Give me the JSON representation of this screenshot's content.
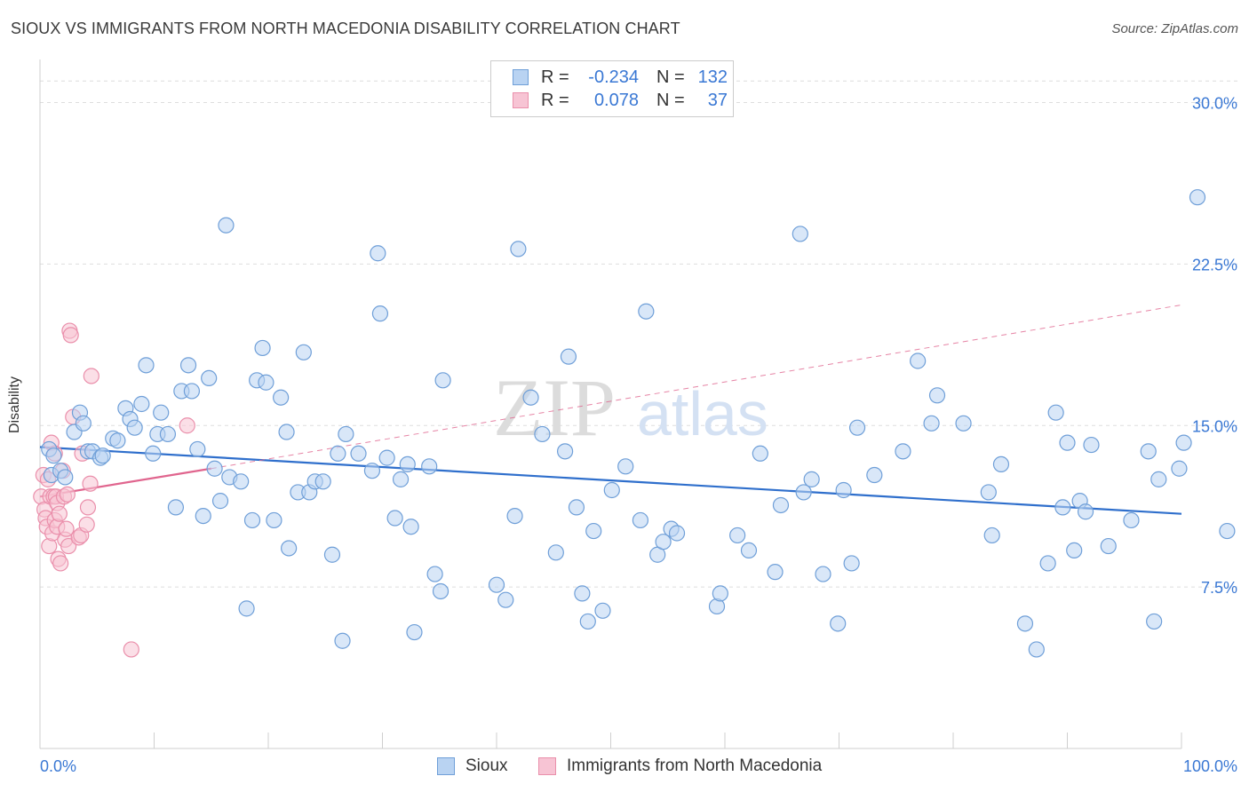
{
  "title": "SIOUX VS IMMIGRANTS FROM NORTH MACEDONIA DISABILITY CORRELATION CHART",
  "source": "Source: ZipAtlas.com",
  "watermark": {
    "zip": "ZIP",
    "atlas": "atlas"
  },
  "legend": {
    "rows": [
      {
        "r_label": "R =",
        "r_value": "-0.234",
        "n_label": "N =",
        "n_value": "132"
      },
      {
        "r_label": "R =",
        "r_value": "0.078",
        "n_label": "N =",
        "n_value": "37"
      }
    ]
  },
  "bottom_legend": {
    "series1": "Sioux",
    "series2": "Immigrants from North Macedonia"
  },
  "colors": {
    "sioux_fill": "#b9d3f2",
    "sioux_stroke": "#6f9fd8",
    "sioux_line": "#2f6fcc",
    "mac_fill": "#f7c4d4",
    "mac_stroke": "#ea8fab",
    "mac_line": "#e0658e",
    "axis_label": "#3a78d4",
    "grid": "#dedede"
  },
  "chart_data": {
    "type": "scatter",
    "title": "SIOUX VS IMMIGRANTS FROM NORTH MACEDONIA DISABILITY CORRELATION CHART",
    "xlabel": "",
    "ylabel": "Disability",
    "xlim": [
      0,
      100
    ],
    "ylim": [
      0,
      32
    ],
    "x_tick_labels": [
      "0.0%",
      "100.0%"
    ],
    "y_ticks": [
      7.5,
      15.0,
      22.5,
      30.0
    ],
    "y_tick_labels": [
      "7.5%",
      "15.0%",
      "22.5%",
      "30.0%"
    ],
    "series": [
      {
        "name": "Sioux",
        "r": -0.234,
        "n": 132,
        "trend": {
          "x": [
            0,
            100
          ],
          "y": [
            14.0,
            10.9
          ]
        },
        "points": [
          [
            0.8,
            13.9
          ],
          [
            1.0,
            12.7
          ],
          [
            1.2,
            13.6
          ],
          [
            1.8,
            12.9
          ],
          [
            2.2,
            12.6
          ],
          [
            3.0,
            14.7
          ],
          [
            3.5,
            15.6
          ],
          [
            3.8,
            15.1
          ],
          [
            4.2,
            13.8
          ],
          [
            4.6,
            13.8
          ],
          [
            5.3,
            13.5
          ],
          [
            5.5,
            13.6
          ],
          [
            6.4,
            14.4
          ],
          [
            6.8,
            14.3
          ],
          [
            7.5,
            15.8
          ],
          [
            7.9,
            15.3
          ],
          [
            8.3,
            14.9
          ],
          [
            8.9,
            16.0
          ],
          [
            9.3,
            17.8
          ],
          [
            9.9,
            13.7
          ],
          [
            10.3,
            14.6
          ],
          [
            10.6,
            15.6
          ],
          [
            11.2,
            14.6
          ],
          [
            11.9,
            11.2
          ],
          [
            12.4,
            16.6
          ],
          [
            13.0,
            17.8
          ],
          [
            13.3,
            16.6
          ],
          [
            13.8,
            13.9
          ],
          [
            14.3,
            10.8
          ],
          [
            14.8,
            17.2
          ],
          [
            15.3,
            13.0
          ],
          [
            15.8,
            11.5
          ],
          [
            16.3,
            24.3
          ],
          [
            16.6,
            12.6
          ],
          [
            17.6,
            12.4
          ],
          [
            18.1,
            6.5
          ],
          [
            18.6,
            10.6
          ],
          [
            19.0,
            17.1
          ],
          [
            19.5,
            18.6
          ],
          [
            19.8,
            17.0
          ],
          [
            20.5,
            10.6
          ],
          [
            21.1,
            16.3
          ],
          [
            21.6,
            14.7
          ],
          [
            21.8,
            9.3
          ],
          [
            22.6,
            11.9
          ],
          [
            23.1,
            18.4
          ],
          [
            23.6,
            11.9
          ],
          [
            24.1,
            12.4
          ],
          [
            24.8,
            12.4
          ],
          [
            25.6,
            9.0
          ],
          [
            26.1,
            13.7
          ],
          [
            26.5,
            5.0
          ],
          [
            26.8,
            14.6
          ],
          [
            27.9,
            13.7
          ],
          [
            29.1,
            12.9
          ],
          [
            29.6,
            23.0
          ],
          [
            29.8,
            20.2
          ],
          [
            30.4,
            13.5
          ],
          [
            31.1,
            10.7
          ],
          [
            31.6,
            12.5
          ],
          [
            32.2,
            13.2
          ],
          [
            32.5,
            10.3
          ],
          [
            32.8,
            5.4
          ],
          [
            34.1,
            13.1
          ],
          [
            34.6,
            8.1
          ],
          [
            35.1,
            7.3
          ],
          [
            35.3,
            17.1
          ],
          [
            40.0,
            7.6
          ],
          [
            40.8,
            6.9
          ],
          [
            41.6,
            10.8
          ],
          [
            41.9,
            23.2
          ],
          [
            43.0,
            16.3
          ],
          [
            44.0,
            14.6
          ],
          [
            45.2,
            9.1
          ],
          [
            46.0,
            13.8
          ],
          [
            46.3,
            18.2
          ],
          [
            47.0,
            11.2
          ],
          [
            47.5,
            7.2
          ],
          [
            48.0,
            5.9
          ],
          [
            48.5,
            10.1
          ],
          [
            49.3,
            6.4
          ],
          [
            50.1,
            12.0
          ],
          [
            51.3,
            13.1
          ],
          [
            52.6,
            10.6
          ],
          [
            53.1,
            20.3
          ],
          [
            54.1,
            9.0
          ],
          [
            54.6,
            9.6
          ],
          [
            55.3,
            10.2
          ],
          [
            55.8,
            10.0
          ],
          [
            59.3,
            6.6
          ],
          [
            59.6,
            7.2
          ],
          [
            61.1,
            9.9
          ],
          [
            62.1,
            9.2
          ],
          [
            63.1,
            13.7
          ],
          [
            64.4,
            8.2
          ],
          [
            64.9,
            11.3
          ],
          [
            66.6,
            23.9
          ],
          [
            66.9,
            11.9
          ],
          [
            67.6,
            12.5
          ],
          [
            68.6,
            8.1
          ],
          [
            69.9,
            5.8
          ],
          [
            70.4,
            12.0
          ],
          [
            71.1,
            8.6
          ],
          [
            71.6,
            14.9
          ],
          [
            73.1,
            12.7
          ],
          [
            75.6,
            13.8
          ],
          [
            76.9,
            18.0
          ],
          [
            78.1,
            15.1
          ],
          [
            78.6,
            16.4
          ],
          [
            80.9,
            15.1
          ],
          [
            83.1,
            11.9
          ],
          [
            83.4,
            9.9
          ],
          [
            84.2,
            13.2
          ],
          [
            86.3,
            5.8
          ],
          [
            87.3,
            4.6
          ],
          [
            88.3,
            8.6
          ],
          [
            89.0,
            15.6
          ],
          [
            89.6,
            11.2
          ],
          [
            90.0,
            14.2
          ],
          [
            90.6,
            9.2
          ],
          [
            91.1,
            11.5
          ],
          [
            91.6,
            11.0
          ],
          [
            92.1,
            14.1
          ],
          [
            93.6,
            9.4
          ],
          [
            95.6,
            10.6
          ],
          [
            97.1,
            13.8
          ],
          [
            97.6,
            5.9
          ],
          [
            98.0,
            12.5
          ],
          [
            99.8,
            13.0
          ],
          [
            100.2,
            14.2
          ],
          [
            101.4,
            25.6
          ],
          [
            104.0,
            10.1
          ]
        ]
      },
      {
        "name": "Immigrants from North Macedonia",
        "r": 0.078,
        "n": 37,
        "trend": {
          "x": [
            0,
            15
          ],
          "y": [
            11.7,
            13.0
          ],
          "dashed_extension": {
            "x": [
              15,
              100
            ],
            "y": [
              13.0,
              20.6
            ]
          }
        },
        "points": [
          [
            0.1,
            11.7
          ],
          [
            0.3,
            12.7
          ],
          [
            0.4,
            11.1
          ],
          [
            0.5,
            10.7
          ],
          [
            0.6,
            10.3
          ],
          [
            0.7,
            12.5
          ],
          [
            0.8,
            9.4
          ],
          [
            0.9,
            11.7
          ],
          [
            1.0,
            14.2
          ],
          [
            1.1,
            10.0
          ],
          [
            1.2,
            11.7
          ],
          [
            1.3,
            10.6
          ],
          [
            1.3,
            13.7
          ],
          [
            1.4,
            11.7
          ],
          [
            1.5,
            11.4
          ],
          [
            1.5,
            10.3
          ],
          [
            1.6,
            8.8
          ],
          [
            1.7,
            10.9
          ],
          [
            1.8,
            8.6
          ],
          [
            2.0,
            12.9
          ],
          [
            2.1,
            11.7
          ],
          [
            2.2,
            9.7
          ],
          [
            2.3,
            10.2
          ],
          [
            2.4,
            11.8
          ],
          [
            2.5,
            9.4
          ],
          [
            2.6,
            19.4
          ],
          [
            2.7,
            19.2
          ],
          [
            2.9,
            15.4
          ],
          [
            3.4,
            9.8
          ],
          [
            3.6,
            9.9
          ],
          [
            3.7,
            13.7
          ],
          [
            4.1,
            10.4
          ],
          [
            4.2,
            11.2
          ],
          [
            4.4,
            12.3
          ],
          [
            4.5,
            17.3
          ],
          [
            8.0,
            4.6
          ],
          [
            12.9,
            15.0
          ]
        ]
      }
    ]
  }
}
